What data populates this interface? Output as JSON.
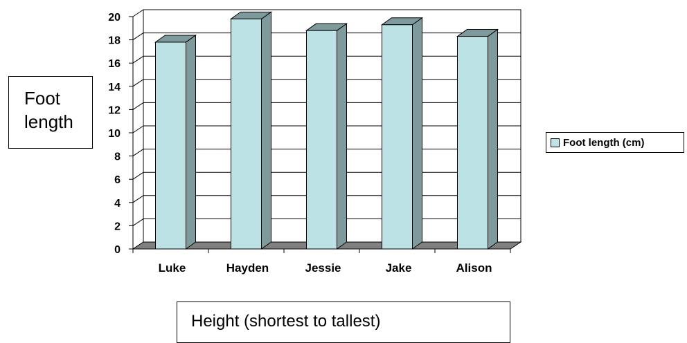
{
  "chart_data": {
    "type": "bar",
    "categories": [
      "Luke",
      "Hayden",
      "Jessie",
      "Jake",
      "Alison"
    ],
    "series": [
      {
        "name": "Foot length (cm)",
        "values": [
          17.8,
          19.8,
          18.8,
          19.3,
          18.3
        ]
      }
    ],
    "ylabel": "Foot length",
    "xlabel": "Height (shortest to tallest)",
    "ylim": [
      0,
      20
    ],
    "yticks": [
      0,
      2,
      4,
      6,
      8,
      10,
      12,
      14,
      16,
      18,
      20
    ],
    "grid": true,
    "legend_position": "right",
    "colors": {
      "bar_front": "#bde2e6",
      "bar_side": "#7f9a9c",
      "floor": "#808080"
    }
  }
}
